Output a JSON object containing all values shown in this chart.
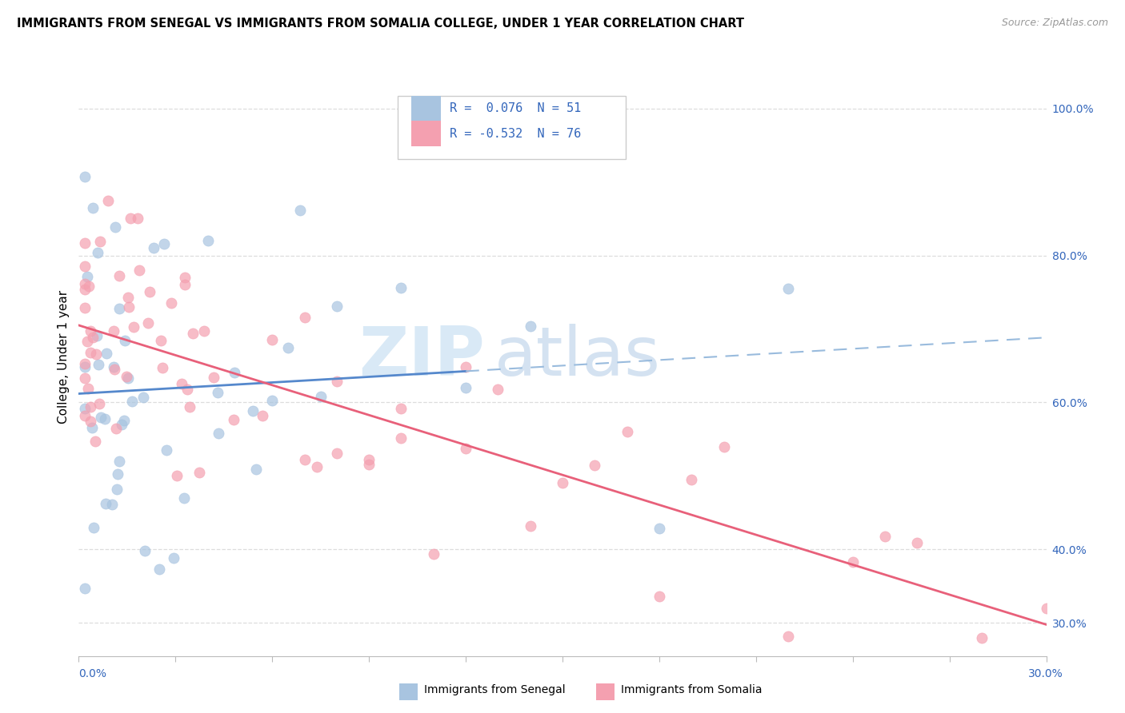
{
  "title": "IMMIGRANTS FROM SENEGAL VS IMMIGRANTS FROM SOMALIA COLLEGE, UNDER 1 YEAR CORRELATION CHART",
  "source": "Source: ZipAtlas.com",
  "ylabel": "College, Under 1 year",
  "right_yticks": [
    "100.0%",
    "80.0%",
    "60.0%",
    "40.0%",
    "30.0%"
  ],
  "right_ytick_vals": [
    1.0,
    0.8,
    0.6,
    0.4,
    0.3
  ],
  "xmin": 0.0,
  "xmax": 0.3,
  "ymin": 0.255,
  "ymax": 1.07,
  "color_senegal": "#a8c4e0",
  "color_somalia": "#f4a0b0",
  "color_senegal_line_solid": "#5588cc",
  "color_senegal_line_dash": "#99bbdd",
  "color_somalia_line": "#e8607a",
  "watermark_zip": "ZIP",
  "watermark_atlas": "atlas",
  "senegal_r": 0.076,
  "senegal_n": 51,
  "somalia_r": -0.532,
  "somalia_n": 76,
  "grid_color": "#dddddd",
  "legend_text_color": "#3366bb"
}
